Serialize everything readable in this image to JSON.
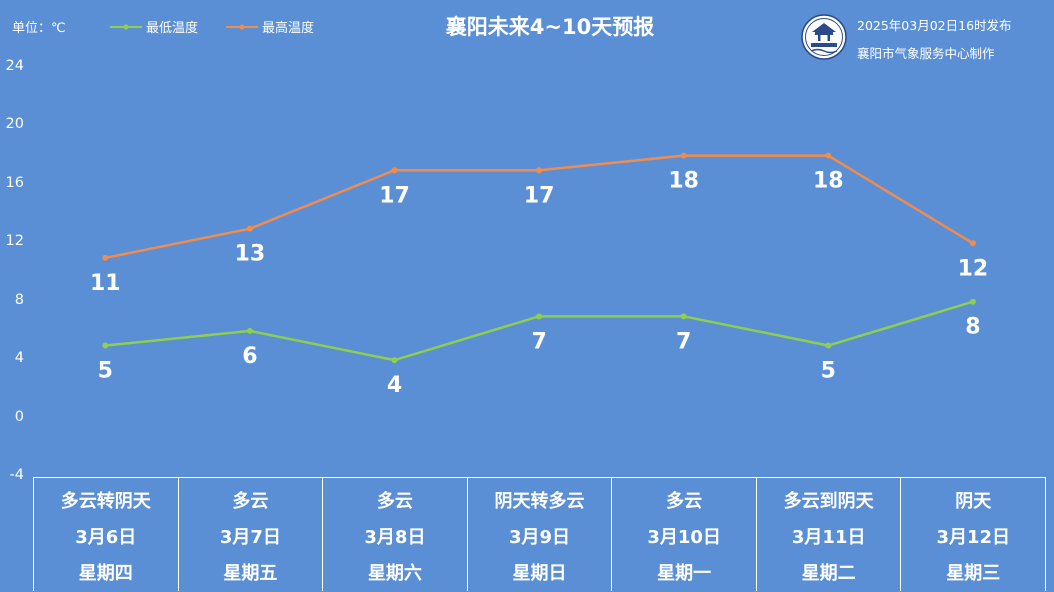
{
  "header": {
    "unit_label": "单位：℃",
    "title": "襄阳未来4~10天预报",
    "issue_time": "2025年03月02日16时发布",
    "issuer": "襄阳市气象服务中心制作",
    "logo_icon": "weather-service-seal-icon"
  },
  "chart_data": {
    "type": "line",
    "title": "襄阳未来4~10天预报",
    "ylabel": "单位：℃",
    "ylim": [
      -4,
      24
    ],
    "yticks": [
      -4,
      0,
      4,
      8,
      12,
      16,
      20,
      24
    ],
    "legend_position": "top-left",
    "grid": false,
    "categories": [
      "3月6日",
      "3月7日",
      "3月8日",
      "3月9日",
      "3月10日",
      "3月11日",
      "3月12日"
    ],
    "series": [
      {
        "name": "最低温度",
        "color": "#8ed04e",
        "values": [
          5,
          6,
          4,
          7,
          7,
          5,
          8
        ]
      },
      {
        "name": "最高温度",
        "color": "#f08c4e",
        "values": [
          11,
          13,
          17,
          17,
          18,
          18,
          12
        ]
      }
    ]
  },
  "forecast": [
    {
      "weather": "多云转阴天",
      "date": "3月6日",
      "weekday": "星期四"
    },
    {
      "weather": "多云",
      "date": "3月7日",
      "weekday": "星期五"
    },
    {
      "weather": "多云",
      "date": "3月8日",
      "weekday": "星期六"
    },
    {
      "weather": "阴天转多云",
      "date": "3月9日",
      "weekday": "星期日"
    },
    {
      "weather": "多云",
      "date": "3月10日",
      "weekday": "星期一"
    },
    {
      "weather": "多云到阴天",
      "date": "3月11日",
      "weekday": "星期二"
    },
    {
      "weather": "阴天",
      "date": "3月12日",
      "weekday": "星期三"
    }
  ]
}
